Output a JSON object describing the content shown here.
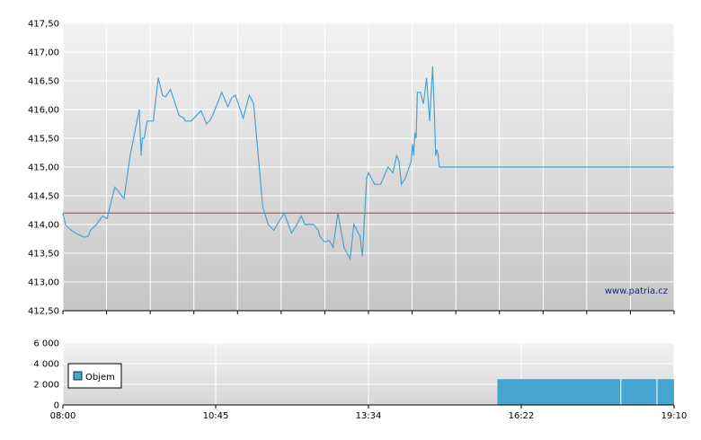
{
  "watermark": "www.patria.cz",
  "colors": {
    "price_line": "#4aa3cc",
    "reference_line": "#cc3333",
    "volume_bar": "#45a5d0",
    "grid": "#ffffff",
    "plot_bg_top": "#f0f0f0",
    "plot_bg_bottom": "#c8c8c8"
  },
  "chart_data": [
    {
      "type": "line",
      "name": "price",
      "ylim": [
        412.5,
        417.5
      ],
      "y_ticks": [
        "412,50",
        "413,00",
        "413,50",
        "414,00",
        "414,50",
        "415,00",
        "415,50",
        "416,00",
        "416,50",
        "417,00",
        "417,50"
      ],
      "y_tick_values": [
        412.5,
        413.0,
        413.5,
        414.0,
        414.5,
        415.0,
        415.5,
        416.0,
        416.5,
        417.0,
        417.5
      ],
      "reference_value": 414.2,
      "grid": true,
      "x_fraction": [
        0.0,
        0.004,
        0.008,
        0.02,
        0.035,
        0.042,
        0.045,
        0.055,
        0.065,
        0.072,
        0.078,
        0.085,
        0.1,
        0.11,
        0.125,
        0.128,
        0.13,
        0.133,
        0.138,
        0.142,
        0.148,
        0.156,
        0.163,
        0.168,
        0.176,
        0.19,
        0.198,
        0.2,
        0.21,
        0.226,
        0.235,
        0.24,
        0.245,
        0.26,
        0.27,
        0.276,
        0.282,
        0.295,
        0.305,
        0.312,
        0.318,
        0.327,
        0.336,
        0.345,
        0.362,
        0.374,
        0.383,
        0.39,
        0.396,
        0.4,
        0.41,
        0.418,
        0.42,
        0.428,
        0.43,
        0.436,
        0.442,
        0.45,
        0.46,
        0.465,
        0.47,
        0.476,
        0.486,
        0.49,
        0.497,
        0.5,
        0.51,
        0.52,
        0.532,
        0.54,
        0.546,
        0.55,
        0.554,
        0.56,
        0.57,
        0.572,
        0.574,
        0.576,
        0.578,
        0.58,
        0.585,
        0.59,
        0.595,
        0.6,
        0.605,
        0.608,
        0.61,
        0.612,
        0.614,
        0.616,
        0.62,
        0.63,
        0.637,
        0.64,
        0.645,
        0.648,
        0.652,
        0.655,
        0.66,
        0.662,
        0.664,
        0.666,
        0.668,
        0.67,
        0.672,
        0.674,
        0.676,
        0.678,
        0.68,
        0.682,
        0.684,
        0.686,
        0.688,
        0.7,
        1.0
      ],
      "values": [
        414.2,
        414.0,
        413.95,
        413.85,
        413.78,
        413.8,
        413.9,
        414.0,
        414.15,
        414.1,
        414.35,
        414.65,
        414.45,
        415.2,
        416.0,
        415.2,
        415.5,
        415.5,
        415.8,
        415.8,
        415.8,
        416.55,
        416.25,
        416.22,
        416.35,
        415.9,
        415.85,
        415.8,
        415.8,
        415.98,
        415.75,
        415.8,
        415.9,
        416.3,
        416.05,
        416.2,
        416.25,
        415.85,
        416.25,
        416.1,
        415.4,
        414.3,
        414.0,
        413.9,
        414.2,
        413.85,
        414.0,
        414.15,
        414.0,
        414.0,
        414.0,
        413.9,
        413.8,
        413.7,
        413.7,
        413.72,
        413.6,
        414.2,
        413.6,
        413.5,
        413.4,
        414.0,
        413.8,
        413.45,
        414.8,
        414.9,
        414.7,
        414.7,
        415.0,
        414.9,
        415.2,
        415.1,
        414.7,
        414.8,
        415.1,
        415.4,
        415.2,
        415.6,
        415.5,
        416.3,
        416.3,
        416.1,
        416.55,
        415.8,
        416.75,
        415.9,
        415.2,
        415.3,
        415.2,
        415.0,
        415.0,
        415.0,
        415.0,
        415.0,
        415.0,
        415.0,
        415.0,
        415.0,
        415.0,
        415.0,
        415.0,
        415.0,
        415.0,
        415.0,
        415.0,
        415.0,
        415.0,
        415.0,
        415.0,
        415.0,
        415.0,
        415.0,
        415.0,
        415.0,
        415.0
      ]
    },
    {
      "type": "bar",
      "name": "Objem",
      "ylim": [
        0,
        6000
      ],
      "y_ticks": [
        "0",
        "2 000",
        "4 000",
        "6 000"
      ],
      "y_tick_values": [
        0,
        2000,
        4000,
        6000
      ],
      "x_ticks": [
        "08:00",
        "10:45",
        "13:34",
        "16:22",
        "19:10"
      ],
      "grid": true,
      "legend": "top-left",
      "bars": [
        {
          "x_start_fraction": 0.711,
          "x_end_fraction": 1.0,
          "value": 2500
        }
      ]
    }
  ]
}
